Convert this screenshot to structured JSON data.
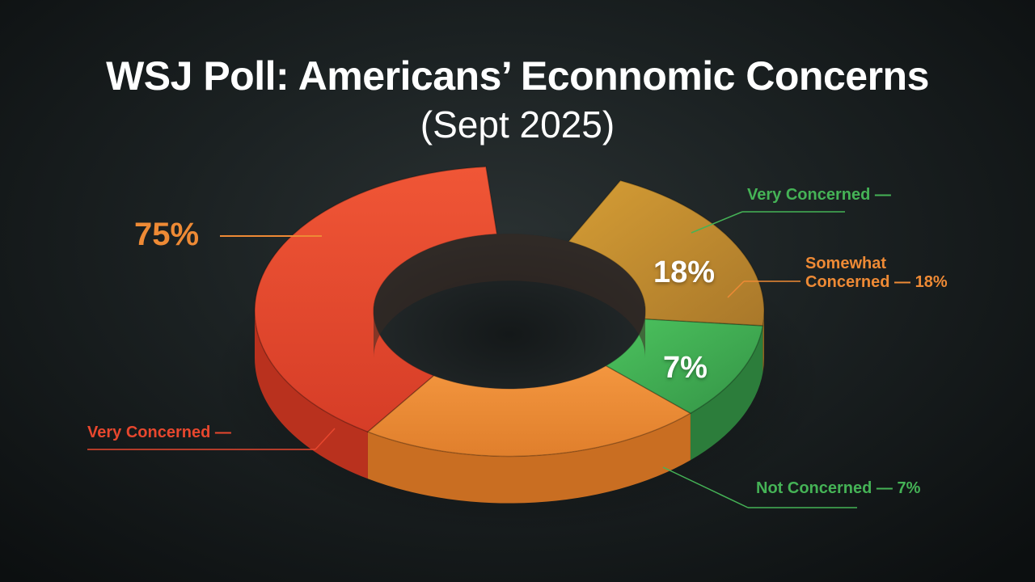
{
  "chart_data": {
    "type": "pie",
    "title": "WSJ Poll: Americans’ Econnomic Concerns",
    "subtitle": "(Sept 2025)",
    "slices": [
      {
        "value": 75,
        "color": "#e8472e",
        "color2": "#ee8a35"
      },
      {
        "value": 18,
        "color": "#c9912f"
      },
      {
        "value": 7,
        "color": "#45b356"
      }
    ],
    "labels": {
      "big_75": "75%",
      "very_concerned_left": "Very Concerned —",
      "very_concerned_right": "Very Concerned —",
      "somewhat_1": "Somewhat",
      "somewhat_2": "Concerned — 18%",
      "not_concerned": "Not Concerned — 7%",
      "pct_18": "18%",
      "pct_7": "7%"
    },
    "colors": {
      "red": "#e8472e",
      "orange": "#ee8a35",
      "gold": "#c9912f",
      "green": "#45b356"
    }
  }
}
